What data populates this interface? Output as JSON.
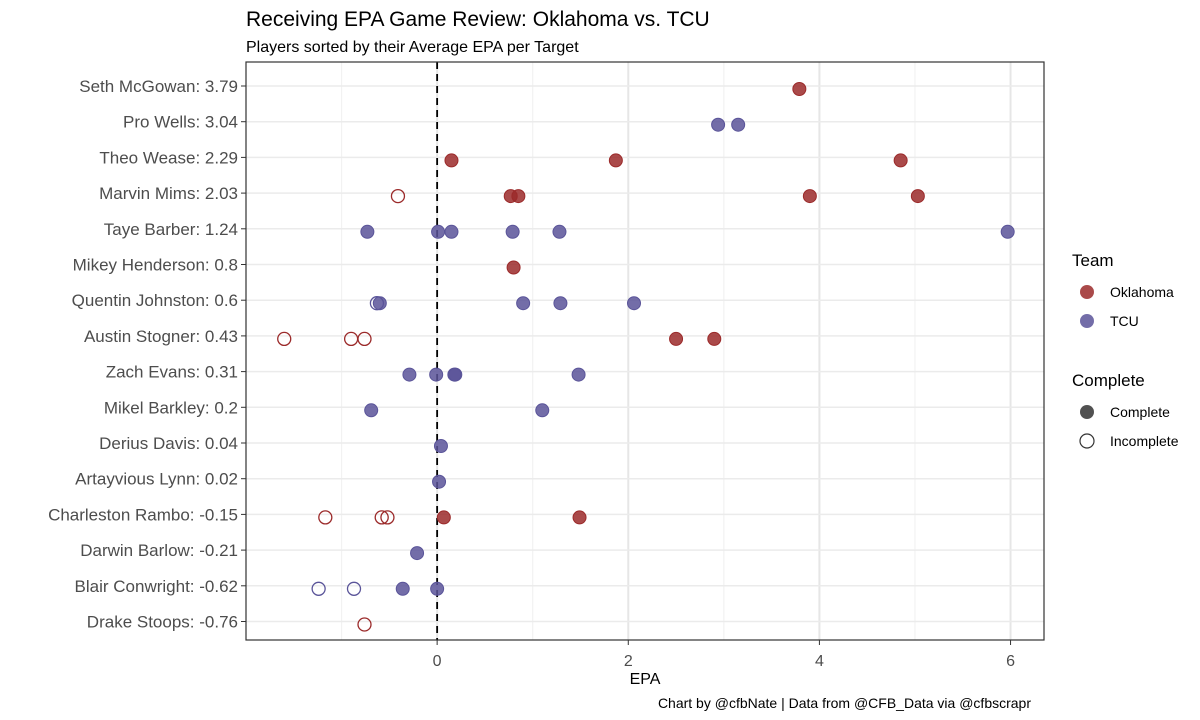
{
  "chart_data": {
    "type": "scatter",
    "title": "Receiving EPA Game Review: Oklahoma vs. TCU",
    "subtitle": "Players sorted by their Average EPA per Target",
    "xlabel": "EPA",
    "ylabel": "",
    "xlim": [
      -2.0,
      6.35
    ],
    "x_ticks": [
      0,
      2,
      4,
      6
    ],
    "x_tick_labels": [
      "0",
      "2",
      "4",
      "6"
    ],
    "grid": true,
    "reference_line": {
      "x": 0,
      "style": "dashed"
    },
    "caption": "Chart by @cfbNate |  Data from @CFB_Data via @cfbscrapr",
    "categories": [
      "Seth McGowan: 3.79",
      "Pro Wells: 3.04",
      "Theo Wease: 2.29",
      "Marvin Mims: 2.03",
      "Taye Barber: 1.24",
      "Mikey Henderson: 0.8",
      "Quentin Johnston: 0.6",
      "Austin Stogner: 0.43",
      "Zach Evans: 0.31",
      "Mikel Barkley: 0.2",
      "Derius Davis: 0.04",
      "Artayvious Lynn: 0.02",
      "Charleston Rambo: -0.15",
      "Darwin Barlow: -0.21",
      "Blair Conwright: -0.62",
      "Drake Stoops: -0.76"
    ],
    "legend": {
      "placement": "right",
      "team": {
        "title": "Team",
        "items": [
          {
            "label": "Oklahoma",
            "color": "#9b2a2a"
          },
          {
            "label": "TCU",
            "color": "#5a5499"
          }
        ]
      },
      "complete": {
        "title": "Complete",
        "items": [
          {
            "label": "Complete",
            "filled": true
          },
          {
            "label": "Incomplete",
            "filled": false
          }
        ]
      }
    },
    "series": [
      {
        "name": "Oklahoma",
        "color": "#9b2a2a",
        "points": [
          {
            "player": "Seth McGowan: 3.79",
            "epa": 3.79,
            "complete": true
          },
          {
            "player": "Theo Wease: 2.29",
            "epa": 0.15,
            "complete": true
          },
          {
            "player": "Theo Wease: 2.29",
            "epa": 1.87,
            "complete": true
          },
          {
            "player": "Theo Wease: 2.29",
            "epa": 4.85,
            "complete": true
          },
          {
            "player": "Marvin Mims: 2.03",
            "epa": -0.41,
            "complete": false
          },
          {
            "player": "Marvin Mims: 2.03",
            "epa": 0.77,
            "complete": true
          },
          {
            "player": "Marvin Mims: 2.03",
            "epa": 0.85,
            "complete": true
          },
          {
            "player": "Marvin Mims: 2.03",
            "epa": 3.9,
            "complete": true
          },
          {
            "player": "Marvin Mims: 2.03",
            "epa": 5.03,
            "complete": true
          },
          {
            "player": "Mikey Henderson: 0.8",
            "epa": 0.8,
            "complete": true
          },
          {
            "player": "Austin Stogner: 0.43",
            "epa": -1.6,
            "complete": false
          },
          {
            "player": "Austin Stogner: 0.43",
            "epa": -0.9,
            "complete": false
          },
          {
            "player": "Austin Stogner: 0.43",
            "epa": -0.76,
            "complete": false
          },
          {
            "player": "Austin Stogner: 0.43",
            "epa": 2.5,
            "complete": true
          },
          {
            "player": "Austin Stogner: 0.43",
            "epa": 2.9,
            "complete": true
          },
          {
            "player": "Charleston Rambo: -0.15",
            "epa": -1.17,
            "complete": false
          },
          {
            "player": "Charleston Rambo: -0.15",
            "epa": -0.58,
            "complete": false
          },
          {
            "player": "Charleston Rambo: -0.15",
            "epa": -0.52,
            "complete": false
          },
          {
            "player": "Charleston Rambo: -0.15",
            "epa": 0.07,
            "complete": true
          },
          {
            "player": "Charleston Rambo: -0.15",
            "epa": 1.49,
            "complete": true
          },
          {
            "player": "Drake Stoops: -0.76",
            "epa": -0.76,
            "complete": false
          }
        ]
      },
      {
        "name": "TCU",
        "color": "#5a5499",
        "points": [
          {
            "player": "Pro Wells: 3.04",
            "epa": 2.94,
            "complete": true
          },
          {
            "player": "Pro Wells: 3.04",
            "epa": 3.15,
            "complete": true
          },
          {
            "player": "Taye Barber: 1.24",
            "epa": -0.73,
            "complete": true
          },
          {
            "player": "Taye Barber: 1.24",
            "epa": 0.01,
            "complete": true
          },
          {
            "player": "Taye Barber: 1.24",
            "epa": 0.15,
            "complete": true
          },
          {
            "player": "Taye Barber: 1.24",
            "epa": 0.79,
            "complete": true
          },
          {
            "player": "Taye Barber: 1.24",
            "epa": 1.28,
            "complete": true
          },
          {
            "player": "Taye Barber: 1.24",
            "epa": 5.97,
            "complete": true
          },
          {
            "player": "Quentin Johnston: 0.6",
            "epa": -0.63,
            "complete": false
          },
          {
            "player": "Quentin Johnston: 0.6",
            "epa": -0.6,
            "complete": true
          },
          {
            "player": "Quentin Johnston: 0.6",
            "epa": 0.9,
            "complete": true
          },
          {
            "player": "Quentin Johnston: 0.6",
            "epa": 1.29,
            "complete": true
          },
          {
            "player": "Quentin Johnston: 0.6",
            "epa": 2.06,
            "complete": true
          },
          {
            "player": "Zach Evans: 0.31",
            "epa": -0.29,
            "complete": true
          },
          {
            "player": "Zach Evans: 0.31",
            "epa": -0.01,
            "complete": true
          },
          {
            "player": "Zach Evans: 0.31",
            "epa": 0.18,
            "complete": true
          },
          {
            "player": "Zach Evans: 0.31",
            "epa": 0.19,
            "complete": true
          },
          {
            "player": "Zach Evans: 0.31",
            "epa": 1.48,
            "complete": true
          },
          {
            "player": "Mikel Barkley: 0.2",
            "epa": -0.69,
            "complete": true
          },
          {
            "player": "Mikel Barkley: 0.2",
            "epa": 1.1,
            "complete": true
          },
          {
            "player": "Derius Davis: 0.04",
            "epa": 0.04,
            "complete": true
          },
          {
            "player": "Artayvious Lynn: 0.02",
            "epa": 0.02,
            "complete": true
          },
          {
            "player": "Darwin Barlow: -0.21",
            "epa": -0.21,
            "complete": true
          },
          {
            "player": "Blair Conwright: -0.62",
            "epa": -1.24,
            "complete": false
          },
          {
            "player": "Blair Conwright: -0.62",
            "epa": -0.87,
            "complete": false
          },
          {
            "player": "Blair Conwright: -0.62",
            "epa": -0.36,
            "complete": true
          },
          {
            "player": "Blair Conwright: -0.62",
            "epa": 0.0,
            "complete": true
          }
        ]
      }
    ]
  }
}
